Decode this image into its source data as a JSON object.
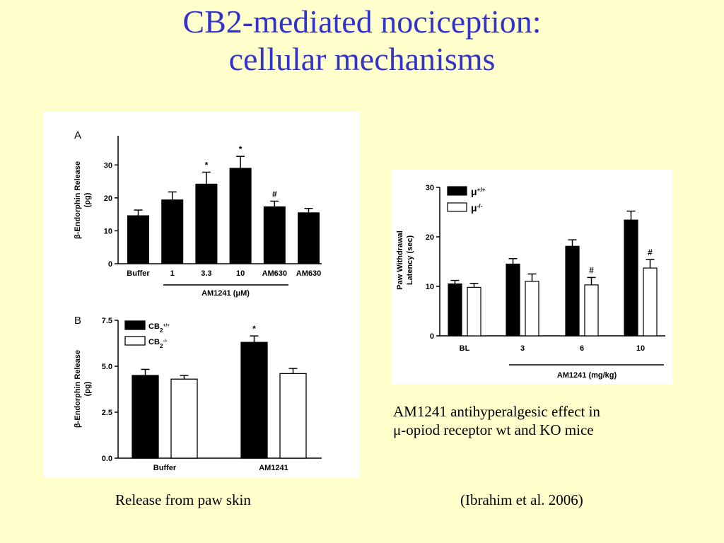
{
  "slide": {
    "title_line1": "CB2-mediated nociception:",
    "title_line2": "cellular mechanisms",
    "caption_left": "Release from paw skin",
    "caption_right_line1": "AM1241 antihyperalgesic effect in",
    "caption_right_line2": "μ-opiod receptor wt and KO mice",
    "citation": "(Ibrahim et al. 2006)"
  },
  "colors": {
    "title": "#3333CC",
    "background": "#FFFFCC",
    "bar_filled": "#000000",
    "bar_open": "#FFFFFF"
  },
  "chart_data": [
    {
      "type": "bar",
      "panel_label": "A",
      "ylabel_line1": "β-Endorphin Release",
      "ylabel_line2": "(pg)",
      "ylim": [
        0,
        35
      ],
      "yticks": [
        0,
        10,
        20,
        30
      ],
      "categories": [
        "Buffer",
        "1",
        "3.3",
        "10",
        "AM630",
        "AM630"
      ],
      "group_label": "AM1241 (μM)",
      "values": [
        14.7,
        19.5,
        24.3,
        29.1,
        17.4,
        15.6
      ],
      "errors": [
        1.6,
        2.3,
        3.5,
        3.5,
        1.6,
        1.2
      ],
      "annotations": [
        "",
        "",
        "*",
        "*",
        "#",
        ""
      ]
    },
    {
      "type": "bar",
      "panel_label": "B",
      "ylabel_line1": "β-Endorphin Release",
      "ylabel_line2": "(pg)",
      "ylim": [
        0,
        7.5
      ],
      "yticks": [
        "0.0",
        "2.5",
        "5.0",
        "7.5"
      ],
      "categories": [
        "Buffer",
        "AM1241"
      ],
      "legend": [
        {
          "name": "CB",
          "sub": "2",
          "sup": "+/+",
          "fill": "#000000"
        },
        {
          "name": "CB",
          "sub": "2",
          "sup": "-/-",
          "fill": "#FFFFFF"
        }
      ],
      "series": [
        {
          "values": [
            4.5,
            6.3
          ],
          "errors": [
            0.33,
            0.35
          ],
          "annotations": [
            "",
            "*"
          ]
        },
        {
          "values": [
            4.3,
            4.6
          ],
          "errors": [
            0.2,
            0.28
          ],
          "annotations": [
            "",
            ""
          ]
        }
      ]
    },
    {
      "type": "bar",
      "ylabel_line1": "Paw Withdrawal",
      "ylabel_line2": "Latency (sec)",
      "ylim": [
        0,
        30
      ],
      "yticks": [
        0,
        10,
        20,
        30
      ],
      "categories": [
        "BL",
        "3",
        "6",
        "10"
      ],
      "group_label": "AM1241 (mg/kg)",
      "legend": [
        {
          "name": "μ",
          "sup": "+/+",
          "fill": "#000000"
        },
        {
          "name": "μ",
          "sup": "-/-",
          "fill": "#FFFFFF"
        }
      ],
      "series": [
        {
          "values": [
            10.5,
            14.5,
            18.1,
            23.4
          ],
          "errors": [
            0.7,
            1.1,
            1.3,
            1.8
          ],
          "annotations": [
            "",
            "",
            "",
            ""
          ]
        },
        {
          "values": [
            9.8,
            11.0,
            10.3,
            13.7
          ],
          "errors": [
            0.8,
            1.5,
            1.5,
            1.7
          ],
          "annotations": [
            "",
            "",
            "#",
            "#"
          ]
        }
      ]
    }
  ]
}
